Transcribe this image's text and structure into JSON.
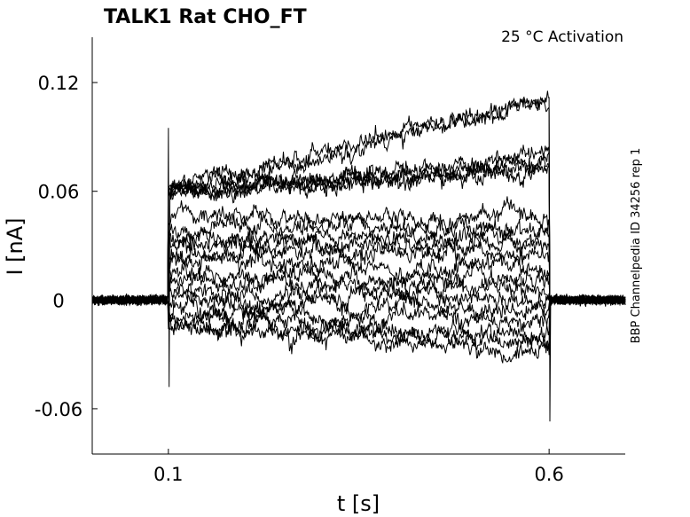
{
  "chart_data": {
    "type": "line",
    "title": "TALK1  Rat  CHO_FT",
    "annotation": "25 °C  Activation",
    "side_label": "BBP Channelpedia ID 34256 rep 1",
    "xlabel": "t [s]",
    "ylabel": "I [nA]",
    "xlim": [
      0.0,
      0.7
    ],
    "ylim": [
      -0.085,
      0.145
    ],
    "x_ticks": [
      0.1,
      0.6
    ],
    "x_tick_labels": [
      "0.1",
      "0.6"
    ],
    "y_ticks": [
      -0.06,
      0,
      0.06,
      0.12
    ],
    "y_tick_labels": [
      "-0.06",
      "0",
      "0.06",
      "0.12"
    ],
    "grid": false,
    "legend": "none",
    "line_color": "#000000",
    "step_on": 0.1,
    "step_off": 0.6,
    "series": [
      {
        "start": 0.06,
        "end": 0.111
      },
      {
        "start": 0.06,
        "end": 0.11
      },
      {
        "start": 0.058,
        "end": 0.08
      },
      {
        "start": 0.06,
        "end": 0.076
      },
      {
        "start": 0.058,
        "end": 0.075
      },
      {
        "start": 0.062,
        "end": 0.072
      },
      {
        "start": 0.043,
        "end": 0.045
      },
      {
        "start": 0.04,
        "end": 0.04
      },
      {
        "start": 0.035,
        "end": 0.035
      },
      {
        "start": 0.03,
        "end": 0.03
      },
      {
        "start": 0.025,
        "end": 0.025
      },
      {
        "start": 0.02,
        "end": 0.018
      },
      {
        "start": 0.015,
        "end": 0.01
      },
      {
        "start": 0.01,
        "end": 0.005
      },
      {
        "start": 0.005,
        "end": 0.0
      },
      {
        "start": 0.0,
        "end": -0.005
      },
      {
        "start": -0.005,
        "end": -0.012
      },
      {
        "start": -0.01,
        "end": -0.02
      },
      {
        "start": -0.012,
        "end": -0.025
      },
      {
        "start": -0.015,
        "end": -0.03
      }
    ]
  }
}
